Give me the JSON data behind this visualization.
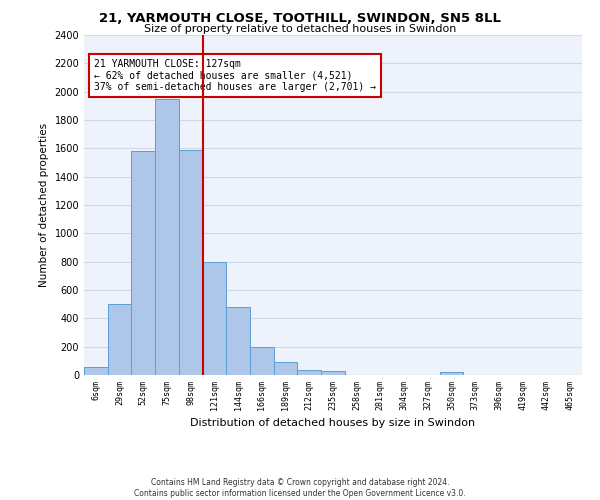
{
  "title1": "21, YARMOUTH CLOSE, TOOTHILL, SWINDON, SN5 8LL",
  "title2": "Size of property relative to detached houses in Swindon",
  "xlabel": "Distribution of detached houses by size in Swindon",
  "ylabel": "Number of detached properties",
  "categories": [
    "6sqm",
    "29sqm",
    "52sqm",
    "75sqm",
    "98sqm",
    "121sqm",
    "144sqm",
    "166sqm",
    "189sqm",
    "212sqm",
    "235sqm",
    "258sqm",
    "281sqm",
    "304sqm",
    "327sqm",
    "350sqm",
    "373sqm",
    "396sqm",
    "419sqm",
    "442sqm",
    "465sqm"
  ],
  "values": [
    55,
    500,
    1580,
    1950,
    1590,
    800,
    480,
    195,
    90,
    33,
    25,
    0,
    0,
    0,
    0,
    20,
    0,
    0,
    0,
    0,
    0
  ],
  "bar_color": "#aec6e8",
  "bar_edge_color": "#5a9fd4",
  "property_line_x": 4.5,
  "annotation_text": "21 YARMOUTH CLOSE: 127sqm\n← 62% of detached houses are smaller (4,521)\n37% of semi-detached houses are larger (2,701) →",
  "annotation_box_color": "#ffffff",
  "annotation_border_color": "#cc0000",
  "vline_color": "#cc0000",
  "footer1": "Contains HM Land Registry data © Crown copyright and database right 2024.",
  "footer2": "Contains public sector information licensed under the Open Government Licence v3.0.",
  "ylim": [
    0,
    2400
  ],
  "yticks": [
    0,
    200,
    400,
    600,
    800,
    1000,
    1200,
    1400,
    1600,
    1800,
    2000,
    2200,
    2400
  ],
  "grid_color": "#d0d8e8",
  "bg_color": "#eef2fa"
}
